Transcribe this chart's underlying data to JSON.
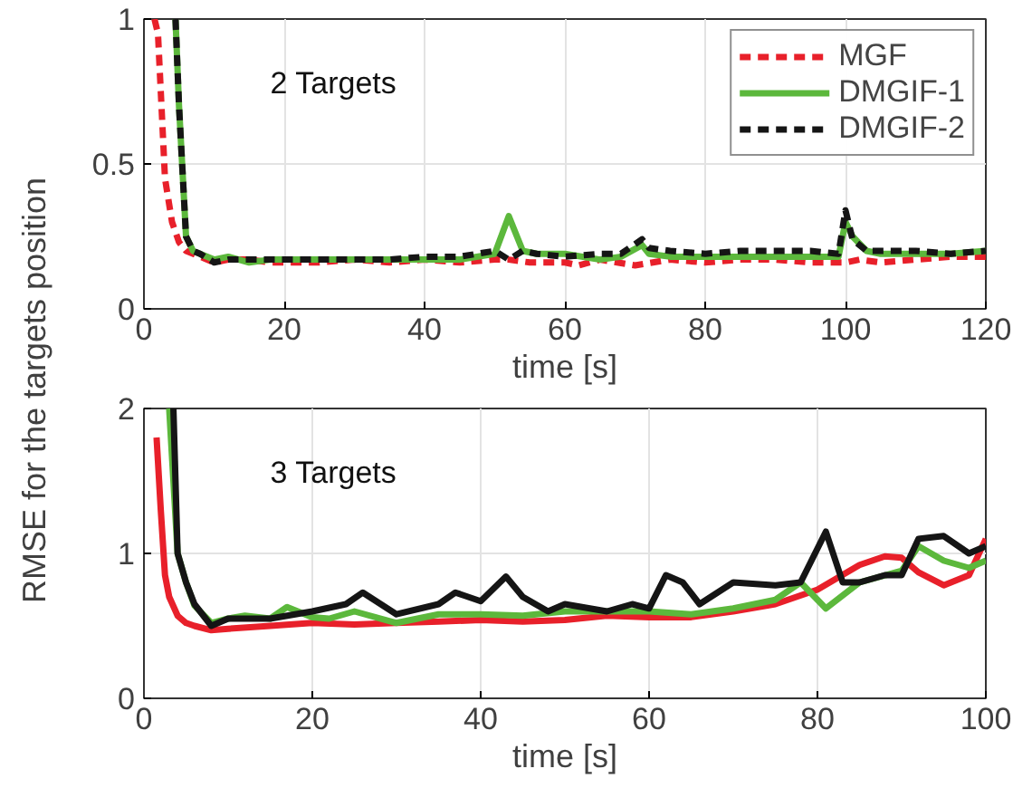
{
  "chart_data": [
    {
      "type": "line",
      "ylabel": "RMSE for the targets position",
      "xlabel": "time [s]",
      "annotations": [
        "2 Targets"
      ],
      "xlim": [
        0,
        120
      ],
      "ylim": [
        0,
        1
      ],
      "xticks": [
        0,
        20,
        40,
        60,
        80,
        100,
        120
      ],
      "yticks": [
        0,
        0.5,
        1
      ],
      "grid": true,
      "legend": "top right",
      "series": [
        {
          "name": "MGF",
          "color": "#e8202a",
          "line_style": "dashed",
          "x": [
            1.5,
            2,
            3,
            4,
            5,
            6,
            8,
            10,
            12,
            15,
            18,
            20,
            25,
            30,
            35,
            40,
            45,
            50,
            52,
            55,
            60,
            62,
            65,
            70,
            75,
            80,
            85,
            90,
            95,
            100,
            102,
            105,
            110,
            115,
            120
          ],
          "values": [
            1,
            0.95,
            0.45,
            0.3,
            0.23,
            0.2,
            0.18,
            0.16,
            0.17,
            0.17,
            0.16,
            0.16,
            0.16,
            0.17,
            0.16,
            0.17,
            0.16,
            0.17,
            0.17,
            0.16,
            0.16,
            0.15,
            0.17,
            0.15,
            0.17,
            0.16,
            0.17,
            0.17,
            0.16,
            0.16,
            0.17,
            0.16,
            0.17,
            0.18,
            0.18
          ]
        },
        {
          "name": "DMGIF-1",
          "color": "#5cb83c",
          "line_style": "solid",
          "x": [
            4.5,
            5,
            6,
            7,
            8,
            10,
            12,
            15,
            18,
            20,
            25,
            30,
            35,
            40,
            45,
            50,
            52,
            54,
            56,
            60,
            65,
            68,
            71,
            72,
            75,
            80,
            85,
            90,
            95,
            99,
            100,
            101,
            103,
            105,
            110,
            115,
            120
          ],
          "values": [
            1,
            0.7,
            0.25,
            0.2,
            0.19,
            0.17,
            0.18,
            0.16,
            0.17,
            0.17,
            0.17,
            0.17,
            0.17,
            0.17,
            0.17,
            0.19,
            0.32,
            0.2,
            0.19,
            0.19,
            0.17,
            0.18,
            0.22,
            0.19,
            0.18,
            0.18,
            0.18,
            0.18,
            0.18,
            0.18,
            0.3,
            0.25,
            0.2,
            0.19,
            0.19,
            0.19,
            0.2
          ]
        },
        {
          "name": "DMGIF-2",
          "color": "#151515",
          "line_style": "dashed",
          "x": [
            4.5,
            5,
            6,
            7,
            8,
            10,
            12,
            15,
            18,
            20,
            25,
            30,
            35,
            40,
            45,
            50,
            52,
            54,
            56,
            60,
            65,
            68,
            71,
            72,
            75,
            80,
            85,
            90,
            95,
            99,
            100,
            101,
            103,
            105,
            110,
            115,
            120
          ],
          "values": [
            1,
            0.7,
            0.25,
            0.2,
            0.19,
            0.16,
            0.17,
            0.17,
            0.17,
            0.17,
            0.17,
            0.17,
            0.17,
            0.18,
            0.18,
            0.2,
            0.17,
            0.2,
            0.19,
            0.18,
            0.19,
            0.19,
            0.24,
            0.21,
            0.2,
            0.19,
            0.2,
            0.2,
            0.2,
            0.19,
            0.34,
            0.24,
            0.2,
            0.2,
            0.2,
            0.19,
            0.2
          ]
        }
      ]
    },
    {
      "type": "line",
      "xlabel": "time [s]",
      "annotations": [
        "3 Targets"
      ],
      "xlim": [
        0,
        100
      ],
      "ylim": [
        0,
        2
      ],
      "xticks": [
        0,
        20,
        40,
        60,
        80,
        100
      ],
      "yticks": [
        0,
        1,
        2
      ],
      "grid": true,
      "series": [
        {
          "color": "#e8202a",
          "line_style": "solid",
          "x": [
            1.5,
            2,
            2.5,
            3,
            4,
            5,
            6,
            8,
            10,
            15,
            20,
            25,
            30,
            35,
            40,
            45,
            50,
            55,
            60,
            65,
            70,
            75,
            80,
            85,
            88,
            90,
            92,
            95,
            98,
            100
          ],
          "values": [
            1.8,
            1.3,
            0.85,
            0.7,
            0.57,
            0.52,
            0.5,
            0.47,
            0.48,
            0.5,
            0.52,
            0.51,
            0.52,
            0.53,
            0.54,
            0.53,
            0.54,
            0.57,
            0.56,
            0.56,
            0.6,
            0.65,
            0.75,
            0.92,
            0.98,
            0.97,
            0.87,
            0.78,
            0.85,
            1.1
          ]
        },
        {
          "color": "#5cb83c",
          "line_style": "solid",
          "x": [
            3,
            4,
            5,
            6,
            8,
            10,
            12,
            15,
            17,
            20,
            22,
            25,
            30,
            35,
            40,
            45,
            50,
            55,
            60,
            65,
            70,
            75,
            78,
            81,
            85,
            90,
            92,
            95,
            98,
            100
          ],
          "values": [
            2,
            1.0,
            0.8,
            0.64,
            0.52,
            0.55,
            0.57,
            0.55,
            0.63,
            0.56,
            0.55,
            0.6,
            0.52,
            0.58,
            0.58,
            0.57,
            0.6,
            0.6,
            0.6,
            0.58,
            0.62,
            0.68,
            0.8,
            0.62,
            0.8,
            0.88,
            1.05,
            0.95,
            0.9,
            0.95
          ]
        },
        {
          "color": "#151515",
          "line_style": "solid",
          "x": [
            3.5,
            4,
            5,
            6,
            8,
            10,
            12,
            15,
            20,
            24,
            26,
            30,
            35,
            37,
            40,
            43,
            45,
            48,
            50,
            55,
            58,
            60,
            62,
            64,
            66,
            70,
            75,
            78,
            81,
            83,
            85,
            88,
            90,
            92,
            95,
            98,
            100
          ],
          "values": [
            2,
            1.0,
            0.8,
            0.65,
            0.5,
            0.55,
            0.55,
            0.55,
            0.6,
            0.65,
            0.73,
            0.58,
            0.65,
            0.73,
            0.67,
            0.84,
            0.7,
            0.6,
            0.65,
            0.6,
            0.65,
            0.62,
            0.85,
            0.8,
            0.65,
            0.8,
            0.78,
            0.8,
            1.15,
            0.8,
            0.8,
            0.85,
            0.85,
            1.1,
            1.12,
            1.0,
            1.05
          ]
        }
      ]
    }
  ]
}
